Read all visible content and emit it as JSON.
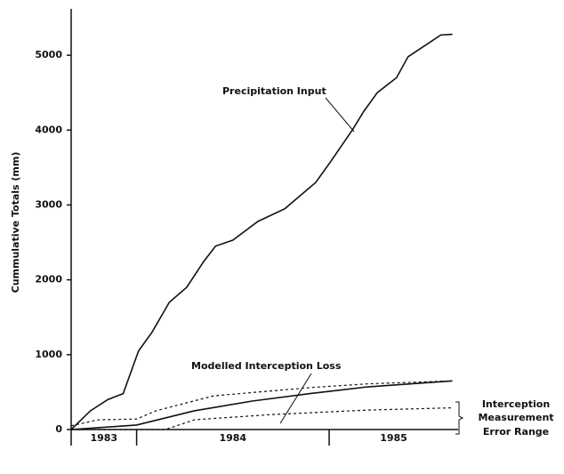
{
  "chart_data": {
    "type": "line",
    "y_label": "Cummulative Totals (mm)",
    "ylim": [
      0,
      5500
    ],
    "yticks": [
      0,
      1000,
      2000,
      3000,
      4000,
      5000
    ],
    "xlim": [
      1983.66,
      1985.67
    ],
    "periods": [
      {
        "label": "1983",
        "start": 1983.66,
        "end": 1984
      },
      {
        "label": "1984",
        "start": 1984,
        "end": 1985
      },
      {
        "label": "1985",
        "start": 1985,
        "end": 1985.67
      }
    ],
    "annotations": [
      "Precipitation Input",
      "Modelled Interception Loss"
    ],
    "range_label": [
      "Interception",
      "Measurement",
      "Error Range"
    ],
    "series": [
      {
        "name": "Precipitation Input",
        "color": "#111111",
        "dash": "none",
        "x": [
          1983.66,
          1983.76,
          1983.85,
          1983.93,
          1984.01,
          1984.08,
          1984.17,
          1984.26,
          1984.35,
          1984.41,
          1984.5,
          1984.63,
          1984.77,
          1984.93,
          1985.0,
          1985.12,
          1985.18,
          1985.25,
          1985.35,
          1985.41,
          1985.51,
          1985.58,
          1985.64
        ],
        "values": [
          0,
          250,
          400,
          480,
          1050,
          1300,
          1700,
          1900,
          2250,
          2450,
          2530,
          2780,
          2950,
          3300,
          3550,
          4000,
          4250,
          4500,
          4700,
          4980,
          5150,
          5270,
          5280
        ]
      },
      {
        "name": "Modelled Interception Loss",
        "color": "#111111",
        "dash": "none",
        "x": [
          1983.66,
          1984.0,
          1984.3,
          1984.6,
          1984.9,
          1985.2,
          1985.64
        ],
        "values": [
          0,
          60,
          250,
          380,
          480,
          570,
          650
        ]
      },
      {
        "color": "#111111",
        "dash": "3 3",
        "x": [
          1983.66,
          1983.8,
          1984.0,
          1984.1,
          1984.4,
          1984.9,
          1985.2,
          1985.64
        ],
        "values": [
          50,
          130,
          140,
          250,
          450,
          560,
          610,
          650
        ]
      },
      {
        "color": "#111111",
        "dash": "3 3",
        "x": [
          1983.66,
          1984.15,
          1984.3,
          1984.7,
          1985.2,
          1985.64
        ],
        "values": [
          0,
          0,
          130,
          200,
          260,
          290
        ]
      }
    ]
  }
}
